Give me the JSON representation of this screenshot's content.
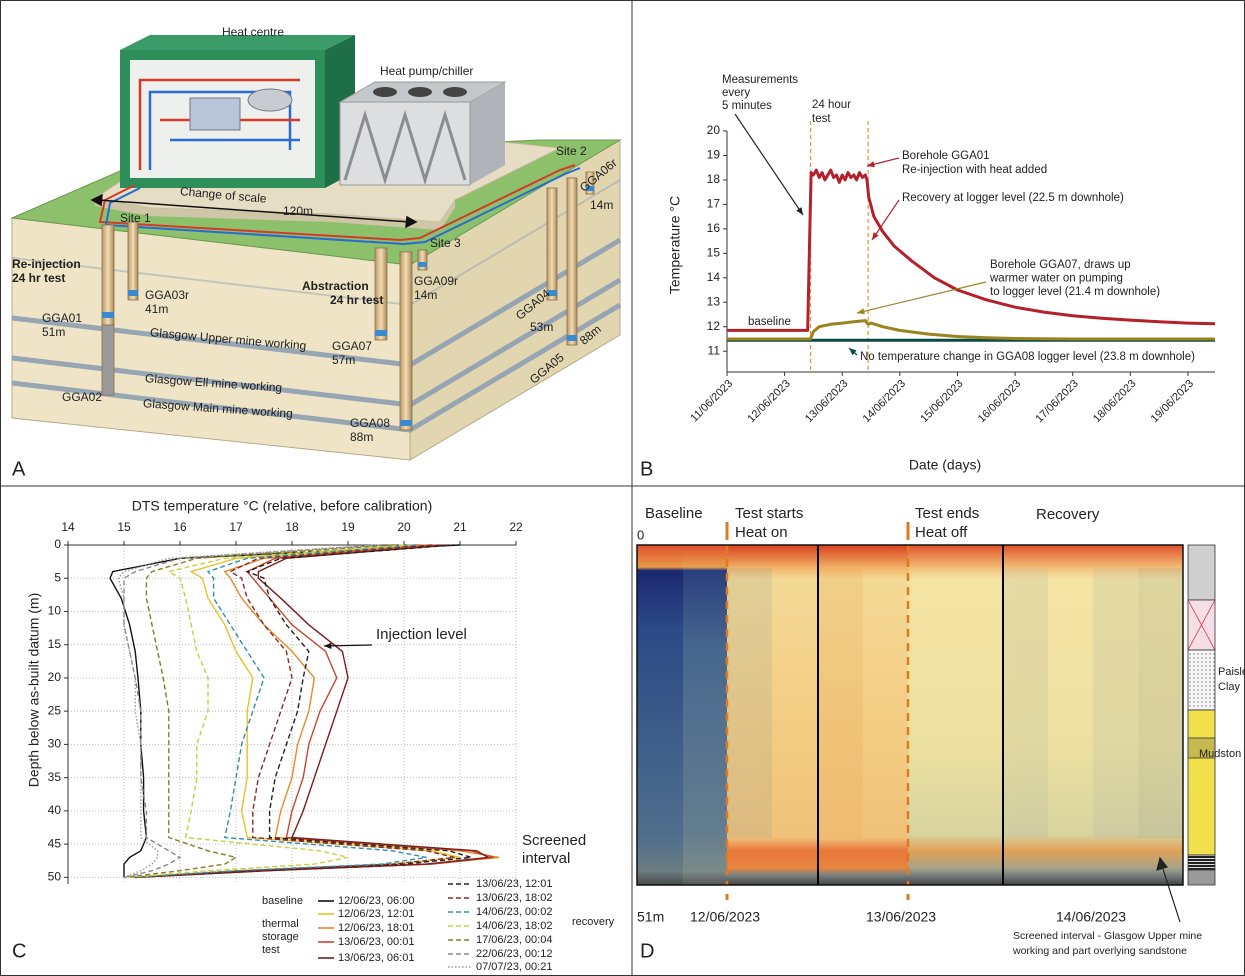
{
  "panel_a": {
    "panel_label": "A",
    "labels": [
      "Heat centre",
      "Heat pump/chiller",
      "Change of scale",
      "120m",
      "Site 1",
      "Site 2",
      "Site 3",
      "Re-injection",
      "24 hr test",
      "Abstraction",
      "24 hr test",
      "GGA01",
      "51m",
      "GGA02",
      "GGA03r",
      "41m",
      "GGA04",
      "53m",
      "GGA05",
      "88m",
      "GGA06r",
      "14m",
      "GGA07",
      "57m",
      "GGA08",
      "88m",
      "GGA09r",
      "14m",
      "Glasgow Upper mine working",
      "Glasgow Ell mine working",
      "Glasgow Main mine working"
    ]
  },
  "chart_data": [
    {
      "type": "line",
      "panel_label": "B",
      "x_label": "Date (days)",
      "y_label": "Temperature °C",
      "xlim": [
        0,
        8.47
      ],
      "xticks": [
        {
          "value": 0,
          "label": "11/06/2023"
        },
        {
          "value": 1,
          "label": "12/06/2023"
        },
        {
          "value": 2,
          "label": "13/06/2023"
        },
        {
          "value": 3,
          "label": "14/06/2023"
        },
        {
          "value": 4,
          "label": "15/06/2023"
        },
        {
          "value": 5,
          "label": "16/06/2023"
        },
        {
          "value": 6,
          "label": "17/06/2023"
        },
        {
          "value": 7,
          "label": "18/06/2023"
        },
        {
          "value": 8,
          "label": "19/06/2023"
        }
      ],
      "ylim": [
        10.15,
        20
      ],
      "yticks": [
        11,
        12,
        13,
        14,
        15,
        16,
        17,
        18,
        19,
        20
      ],
      "test_window": {
        "color": "#e3962c",
        "x": [
          1.45,
          2.45
        ]
      },
      "series": [
        {
          "color": "#0d4a47",
          "x": [
            0,
            8.47
          ],
          "values": [
            11.45,
            11.45
          ]
        },
        {
          "color": "#9a8420",
          "x": [
            0,
            1.45,
            1.5,
            1.6,
            1.8,
            2.0,
            2.2,
            2.4,
            2.45,
            2.5,
            2.7,
            3.0,
            3.5,
            4.0,
            4.5,
            5.0,
            6.0,
            7.0,
            8.47
          ],
          "values": [
            11.5,
            11.5,
            11.8,
            12.0,
            12.1,
            12.15,
            12.2,
            12.25,
            12.1,
            12.15,
            12.0,
            11.85,
            11.7,
            11.6,
            11.55,
            11.52,
            11.5,
            11.5,
            11.5
          ]
        },
        {
          "color": "#b5202a",
          "x": [
            0,
            1.4,
            1.42,
            1.46,
            1.5,
            1.55,
            1.6,
            1.65,
            1.7,
            1.75,
            1.8,
            1.85,
            1.9,
            1.95,
            2.0,
            2.05,
            2.1,
            2.15,
            2.2,
            2.25,
            2.3,
            2.35,
            2.4,
            2.43,
            2.46,
            2.55,
            2.7,
            2.9,
            3.2,
            3.6,
            4.0,
            4.5,
            5.0,
            5.5,
            6.0,
            6.5,
            7.0,
            7.5,
            8.0,
            8.47
          ],
          "values": [
            11.85,
            11.85,
            14.0,
            18.3,
            18.2,
            18.4,
            18.1,
            18.3,
            18.0,
            18.2,
            18.4,
            18.1,
            18.2,
            17.9,
            18.2,
            18.0,
            18.3,
            18.1,
            18.2,
            18.0,
            18.3,
            18.1,
            18.2,
            18.0,
            17.3,
            16.5,
            15.9,
            15.3,
            14.7,
            14.0,
            13.5,
            13.1,
            12.8,
            12.6,
            12.45,
            12.35,
            12.27,
            12.2,
            12.15,
            12.12
          ]
        }
      ],
      "annotations": [
        {
          "lines": [
            "Measurements",
            "every",
            "5 minutes"
          ],
          "color": "#222222"
        },
        {
          "lines": [
            "24 hour",
            "test"
          ],
          "color": "#d4961e"
        },
        {
          "lines": [
            "baseline"
          ],
          "color": "#b5202a"
        },
        {
          "lines": [
            "Borehole GGA01",
            "Re-injection with heat added"
          ],
          "color": "#b5202a"
        },
        {
          "lines": [
            "Recovery at logger level (22.5 m downhole)"
          ],
          "color": "#b5202a"
        },
        {
          "lines": [
            "Borehole GGA07, draws up",
            "warmer water on pumping",
            "to logger level (21.4 m downhole)"
          ],
          "color": "#9a8420"
        },
        {
          "lines": [
            "No temperature change in GGA08 logger level (23.8 m downhole)"
          ],
          "color": "#0d4a47"
        }
      ]
    },
    {
      "type": "profile",
      "panel_label": "C",
      "title": "DTS temperature °C (relative, before calibration)",
      "y_label": "Depth below as-built datum (m)",
      "xlim": [
        14,
        22
      ],
      "xticks": [
        14,
        15,
        16,
        17,
        18,
        19,
        20,
        21,
        22
      ],
      "ylim": [
        0,
        51
      ],
      "yticks": [
        0,
        5,
        10,
        15,
        20,
        25,
        30,
        35,
        40,
        45,
        50
      ],
      "grid": true,
      "depths": [
        0,
        2,
        4,
        5,
        8,
        12,
        16,
        20,
        25,
        30,
        35,
        40,
        44,
        46,
        47,
        48,
        49,
        50
      ],
      "legend_groups": [
        {
          "lines": [
            "baseline"
          ]
        },
        {
          "lines": [
            "thermal",
            "storage",
            "test"
          ]
        },
        {
          "lines": [
            "recovery"
          ]
        }
      ],
      "series": [
        {
          "name": "12/06/23, 06:00",
          "color": "#111111",
          "dash": "solid",
          "values": [
            21.0,
            16.0,
            14.8,
            14.75,
            14.95,
            15.1,
            15.2,
            15.25,
            15.3,
            15.3,
            15.35,
            15.35,
            15.4,
            15.3,
            15.1,
            15.0,
            15.0,
            15.0
          ]
        },
        {
          "name": "12/06/23, 12:01",
          "color": "#e8c22a",
          "dash": "solid",
          "values": [
            20.2,
            17.0,
            16.2,
            16.4,
            16.5,
            16.8,
            17.0,
            17.3,
            17.2,
            17.2,
            17.2,
            17.1,
            17.2,
            20.5,
            21.0,
            19.8,
            17.0,
            15.2
          ]
        },
        {
          "name": "12/06/23, 18:01",
          "color": "#e8892a",
          "dash": "solid",
          "values": [
            20.4,
            17.5,
            16.8,
            16.9,
            17.1,
            17.5,
            18.0,
            18.4,
            18.3,
            18.1,
            18.0,
            17.8,
            17.7,
            21.0,
            21.7,
            20.5,
            17.5,
            15.2
          ]
        },
        {
          "name": "13/06/23, 00:01",
          "color": "#c9452e",
          "dash": "solid",
          "values": [
            20.6,
            17.7,
            17.2,
            17.3,
            17.6,
            18.0,
            18.6,
            18.8,
            18.5,
            18.3,
            18.2,
            18.0,
            17.9,
            21.2,
            21.6,
            20.5,
            17.5,
            15.2
          ]
        },
        {
          "name": "13/06/23, 06:01",
          "color": "#7a1d1d",
          "dash": "solid",
          "values": [
            20.8,
            17.9,
            17.4,
            17.4,
            17.8,
            18.3,
            18.9,
            19.0,
            18.8,
            18.6,
            18.4,
            18.2,
            18.0,
            21.3,
            21.5,
            20.4,
            17.6,
            15.2
          ]
        },
        {
          "name": "13/06/23, 12:01",
          "color": "#222222",
          "dash": "dashed",
          "values": [
            20.9,
            17.8,
            17.2,
            17.5,
            17.6,
            17.9,
            18.3,
            18.2,
            18.1,
            17.9,
            17.7,
            17.6,
            17.6,
            20.8,
            21.2,
            20.0,
            17.3,
            15.2
          ]
        },
        {
          "name": "13/06/23, 18:02",
          "color": "#8a2a2a",
          "dash": "dashed",
          "values": [
            20.5,
            17.4,
            16.9,
            17.1,
            17.2,
            17.5,
            17.9,
            18.0,
            17.8,
            17.6,
            17.4,
            17.3,
            17.3,
            20.4,
            20.9,
            19.8,
            17.2,
            15.2
          ]
        },
        {
          "name": "14/06/23, 00:02",
          "color": "#2e8fb0",
          "dash": "dashed",
          "values": [
            20.2,
            17.2,
            16.5,
            16.6,
            16.6,
            16.9,
            17.2,
            17.5,
            17.3,
            17.1,
            17.0,
            16.9,
            16.8,
            19.8,
            20.4,
            19.6,
            17.0,
            15.1
          ]
        },
        {
          "name": "14/06/23, 18:02",
          "color": "#c8d040",
          "dash": "dashed",
          "values": [
            20.0,
            16.8,
            15.8,
            16.0,
            16.1,
            16.2,
            16.3,
            16.5,
            16.5,
            16.3,
            16.3,
            16.2,
            16.1,
            18.5,
            19.0,
            18.4,
            16.5,
            15.1
          ]
        },
        {
          "name": "17/06/23, 00:04",
          "color": "#8a7a1e",
          "dash": "dashed",
          "values": [
            19.8,
            16.3,
            15.5,
            15.4,
            15.4,
            15.5,
            15.6,
            15.7,
            15.8,
            15.8,
            15.8,
            15.8,
            15.8,
            16.5,
            17.0,
            16.8,
            16.0,
            15.0
          ]
        },
        {
          "name": "22/06/23, 00:12",
          "color": "#888888",
          "dash": "dashed",
          "values": [
            19.6,
            16.0,
            15.2,
            15.0,
            15.0,
            15.0,
            15.1,
            15.2,
            15.3,
            15.3,
            15.3,
            15.4,
            15.4,
            15.8,
            16.0,
            15.8,
            15.5,
            15.0
          ]
        },
        {
          "name": "07/07/23, 00:21",
          "color": "#9a9a9a",
          "dash": "dotted",
          "values": [
            19.5,
            15.8,
            15.0,
            14.9,
            15.0,
            15.0,
            15.1,
            15.2,
            15.2,
            15.3,
            15.3,
            15.3,
            15.3,
            15.6,
            15.6,
            15.5,
            15.3,
            15.0
          ]
        }
      ],
      "annotations": [
        {
          "lines": [
            "Injection level"
          ]
        },
        {
          "lines": [
            "Screened",
            "interval"
          ]
        }
      ]
    }
  ],
  "panel_d": {
    "panel_label": "D",
    "headers": [
      {
        "lines": [
          "Baseline"
        ]
      },
      {
        "lines": [
          "Test starts",
          "Heat on"
        ]
      },
      {
        "lines": [
          "Test ends",
          "Heat off"
        ]
      },
      {
        "lines": [
          "Recovery"
        ]
      }
    ],
    "depth_top": "0",
    "depth_bottom": "51m",
    "dates": [
      "12/06/2023",
      "13/06/2023",
      "14/06/2023"
    ],
    "annotation": [
      "Screened interval - Glasgow Upper mine",
      "working and part overlying sandstone"
    ],
    "log_labels": [
      "Paisle",
      "Clay",
      "Mudston"
    ]
  }
}
